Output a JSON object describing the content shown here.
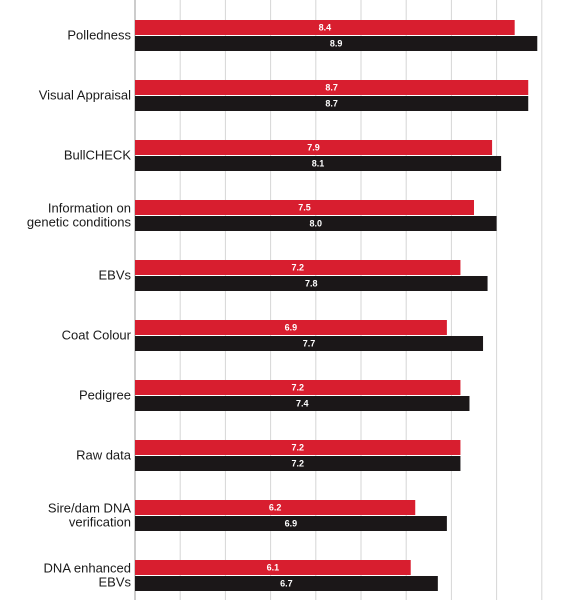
{
  "colors": {
    "series_a": "#d81e2f",
    "series_b": "#1b1718",
    "grid": "#d6d6d6",
    "background": "#ffffff"
  },
  "chart_data": {
    "type": "bar",
    "orientation": "horizontal",
    "title": "",
    "xlabel": "",
    "ylabel": "",
    "grid": true,
    "legend": "none",
    "categories": [
      [
        "Polledness"
      ],
      [
        "Visual Appraisal"
      ],
      [
        "BullCHECK"
      ],
      [
        "Information on",
        "genetic conditions"
      ],
      [
        "EBVs"
      ],
      [
        "Coat Colour"
      ],
      [
        "Pedigree"
      ],
      [
        "Raw data"
      ],
      [
        "Sire/dam DNA",
        "verification"
      ],
      [
        "DNA enhanced",
        "EBVs"
      ]
    ],
    "series": [
      {
        "values": [
          8.4,
          8.7,
          7.9,
          7.5,
          7.2,
          6.9,
          7.2,
          7.2,
          6.2,
          6.1
        ],
        "labels": [
          "8.4",
          "8.7",
          "7.9",
          "7.5",
          "7.2",
          "6.9",
          "7.2",
          "7.2",
          "6.2",
          "6.1"
        ]
      },
      {
        "values": [
          8.9,
          8.7,
          8.1,
          8.0,
          7.8,
          7.7,
          7.4,
          7.2,
          6.9,
          6.7
        ],
        "labels": [
          "8.9",
          "8.7",
          "8.1",
          "8.0",
          "7.8",
          "7.7",
          "7.4",
          "7.2",
          "6.9",
          "6.7"
        ]
      }
    ],
    "xlim": [
      0,
      10
    ]
  }
}
